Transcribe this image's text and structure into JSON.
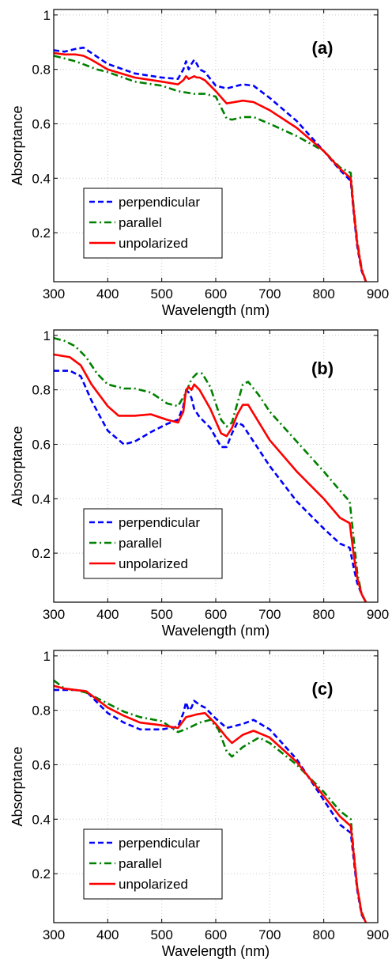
{
  "chart_data": [
    {
      "type": "line",
      "panel_label": "(a)",
      "xlabel": "Wavelength (nm)",
      "ylabel": "Absorptance",
      "xlim": [
        300,
        900
      ],
      "ylim": [
        0.02,
        1.02
      ],
      "xticks": [
        "300",
        "400",
        "500",
        "600",
        "700",
        "800",
        "900"
      ],
      "yticks": [
        "0.2",
        "0.4",
        "0.6",
        "0.8",
        "1"
      ],
      "grid": true,
      "legend_position": "bottom-left",
      "series": [
        {
          "name": "perpendicular",
          "color": "#0000ff",
          "dash": "dashed",
          "x": [
            300,
            320,
            340,
            355,
            370,
            400,
            450,
            500,
            530,
            540,
            545,
            550,
            555,
            560,
            565,
            570,
            580,
            600,
            620,
            650,
            670,
            700,
            750,
            800,
            830,
            850,
            855,
            862,
            870,
            878
          ],
          "y": [
            0.87,
            0.865,
            0.875,
            0.88,
            0.86,
            0.82,
            0.785,
            0.77,
            0.765,
            0.8,
            0.83,
            0.8,
            0.82,
            0.835,
            0.82,
            0.8,
            0.79,
            0.74,
            0.73,
            0.745,
            0.74,
            0.695,
            0.61,
            0.5,
            0.43,
            0.39,
            0.28,
            0.15,
            0.06,
            0.02
          ]
        },
        {
          "name": "parallel",
          "color": "#008000",
          "dash": "dashdot",
          "x": [
            300,
            320,
            340,
            360,
            380,
            400,
            450,
            500,
            530,
            560,
            580,
            600,
            610,
            620,
            630,
            650,
            670,
            700,
            750,
            800,
            830,
            850,
            855,
            862,
            870,
            878
          ],
          "y": [
            0.85,
            0.84,
            0.83,
            0.815,
            0.8,
            0.79,
            0.755,
            0.74,
            0.72,
            0.71,
            0.71,
            0.7,
            0.66,
            0.62,
            0.615,
            0.625,
            0.625,
            0.6,
            0.555,
            0.5,
            0.44,
            0.42,
            0.3,
            0.17,
            0.07,
            0.02
          ]
        },
        {
          "name": "unpolarized",
          "color": "#ff0000",
          "dash": "solid",
          "x": [
            300,
            320,
            340,
            355,
            370,
            400,
            450,
            500,
            530,
            540,
            545,
            550,
            555,
            560,
            565,
            570,
            580,
            600,
            620,
            650,
            670,
            700,
            750,
            800,
            830,
            850,
            855,
            862,
            870,
            878
          ],
          "y": [
            0.86,
            0.855,
            0.855,
            0.85,
            0.835,
            0.8,
            0.77,
            0.755,
            0.745,
            0.76,
            0.775,
            0.765,
            0.77,
            0.775,
            0.77,
            0.77,
            0.76,
            0.72,
            0.675,
            0.685,
            0.68,
            0.65,
            0.585,
            0.5,
            0.435,
            0.4,
            0.29,
            0.16,
            0.065,
            0.02
          ]
        }
      ]
    },
    {
      "type": "line",
      "panel_label": "(b)",
      "xlabel": "Wavelength (nm)",
      "ylabel": "Absorptance",
      "xlim": [
        300,
        900
      ],
      "ylim": [
        0.02,
        1.02
      ],
      "xticks": [
        "300",
        "400",
        "500",
        "600",
        "700",
        "800",
        "900"
      ],
      "yticks": [
        "0.2",
        "0.4",
        "0.6",
        "0.8",
        "1"
      ],
      "grid": true,
      "legend_position": "bottom-left",
      "series": [
        {
          "name": "perpendicular",
          "color": "#0000ff",
          "dash": "dashed",
          "x": [
            300,
            330,
            350,
            370,
            400,
            430,
            450,
            480,
            510,
            530,
            540,
            545,
            550,
            555,
            560,
            570,
            590,
            610,
            620,
            630,
            640,
            650,
            700,
            750,
            800,
            830,
            848,
            855,
            862,
            870,
            878
          ],
          "y": [
            0.87,
            0.87,
            0.85,
            0.76,
            0.65,
            0.6,
            0.61,
            0.645,
            0.675,
            0.69,
            0.74,
            0.8,
            0.79,
            0.77,
            0.73,
            0.7,
            0.66,
            0.59,
            0.59,
            0.64,
            0.68,
            0.67,
            0.52,
            0.39,
            0.29,
            0.235,
            0.22,
            0.15,
            0.09,
            0.05,
            0.02
          ]
        },
        {
          "name": "parallel",
          "color": "#008000",
          "dash": "dashdot",
          "x": [
            300,
            320,
            340,
            360,
            380,
            400,
            430,
            450,
            480,
            510,
            530,
            545,
            555,
            565,
            575,
            590,
            610,
            620,
            630,
            640,
            650,
            660,
            680,
            700,
            750,
            800,
            830,
            848,
            855,
            862,
            870,
            878
          ],
          "y": [
            0.99,
            0.98,
            0.96,
            0.92,
            0.86,
            0.82,
            0.805,
            0.805,
            0.79,
            0.75,
            0.74,
            0.79,
            0.84,
            0.86,
            0.86,
            0.81,
            0.69,
            0.665,
            0.68,
            0.75,
            0.82,
            0.83,
            0.78,
            0.72,
            0.61,
            0.5,
            0.43,
            0.39,
            0.26,
            0.13,
            0.05,
            0.02
          ]
        },
        {
          "name": "unpolarized",
          "color": "#ff0000",
          "dash": "solid",
          "x": [
            300,
            330,
            350,
            370,
            400,
            420,
            450,
            480,
            510,
            530,
            540,
            545,
            550,
            555,
            560,
            570,
            590,
            610,
            620,
            630,
            640,
            650,
            660,
            700,
            750,
            800,
            830,
            848,
            855,
            862,
            870,
            878
          ],
          "y": [
            0.93,
            0.92,
            0.89,
            0.82,
            0.74,
            0.705,
            0.705,
            0.71,
            0.69,
            0.68,
            0.72,
            0.8,
            0.81,
            0.8,
            0.82,
            0.8,
            0.73,
            0.64,
            0.63,
            0.66,
            0.71,
            0.745,
            0.745,
            0.615,
            0.5,
            0.4,
            0.33,
            0.31,
            0.2,
            0.11,
            0.05,
            0.02
          ]
        }
      ]
    },
    {
      "type": "line",
      "panel_label": "(c)",
      "xlabel": "Wavelength (nm)",
      "ylabel": "Absorptance",
      "xlim": [
        300,
        900
      ],
      "ylim": [
        0.02,
        1.02
      ],
      "xticks": [
        "300",
        "400",
        "500",
        "600",
        "700",
        "800",
        "900"
      ],
      "yticks": [
        "0.2",
        "0.4",
        "0.6",
        "0.8",
        "1"
      ],
      "grid": true,
      "legend_position": "bottom-left",
      "series": [
        {
          "name": "perpendicular",
          "color": "#0000ff",
          "dash": "dashed",
          "x": [
            300,
            320,
            340,
            360,
            380,
            400,
            430,
            460,
            500,
            530,
            540,
            545,
            550,
            555,
            560,
            570,
            580,
            600,
            620,
            650,
            670,
            700,
            750,
            800,
            830,
            850,
            855,
            862,
            870,
            878
          ],
          "y": [
            0.875,
            0.875,
            0.875,
            0.87,
            0.83,
            0.79,
            0.755,
            0.73,
            0.73,
            0.74,
            0.79,
            0.83,
            0.8,
            0.81,
            0.835,
            0.82,
            0.81,
            0.77,
            0.735,
            0.75,
            0.765,
            0.73,
            0.62,
            0.47,
            0.38,
            0.35,
            0.26,
            0.14,
            0.05,
            0.02
          ]
        },
        {
          "name": "parallel",
          "color": "#008000",
          "dash": "dashdot",
          "x": [
            300,
            320,
            340,
            360,
            380,
            400,
            430,
            460,
            500,
            530,
            550,
            570,
            590,
            605,
            620,
            630,
            650,
            680,
            700,
            750,
            800,
            830,
            850,
            855,
            862,
            870,
            878
          ],
          "y": [
            0.91,
            0.88,
            0.875,
            0.865,
            0.845,
            0.825,
            0.795,
            0.775,
            0.76,
            0.72,
            0.735,
            0.755,
            0.765,
            0.73,
            0.65,
            0.63,
            0.665,
            0.7,
            0.68,
            0.6,
            0.5,
            0.43,
            0.4,
            0.29,
            0.15,
            0.06,
            0.02
          ]
        },
        {
          "name": "unpolarized",
          "color": "#ff0000",
          "dash": "solid",
          "x": [
            300,
            320,
            340,
            360,
            380,
            400,
            430,
            460,
            500,
            530,
            545,
            555,
            565,
            580,
            600,
            620,
            630,
            650,
            670,
            700,
            750,
            800,
            830,
            850,
            855,
            862,
            870,
            878
          ],
          "y": [
            0.89,
            0.88,
            0.875,
            0.87,
            0.84,
            0.81,
            0.78,
            0.755,
            0.745,
            0.735,
            0.775,
            0.78,
            0.785,
            0.79,
            0.75,
            0.7,
            0.68,
            0.71,
            0.725,
            0.7,
            0.61,
            0.485,
            0.41,
            0.375,
            0.28,
            0.15,
            0.055,
            0.02
          ]
        }
      ]
    }
  ]
}
